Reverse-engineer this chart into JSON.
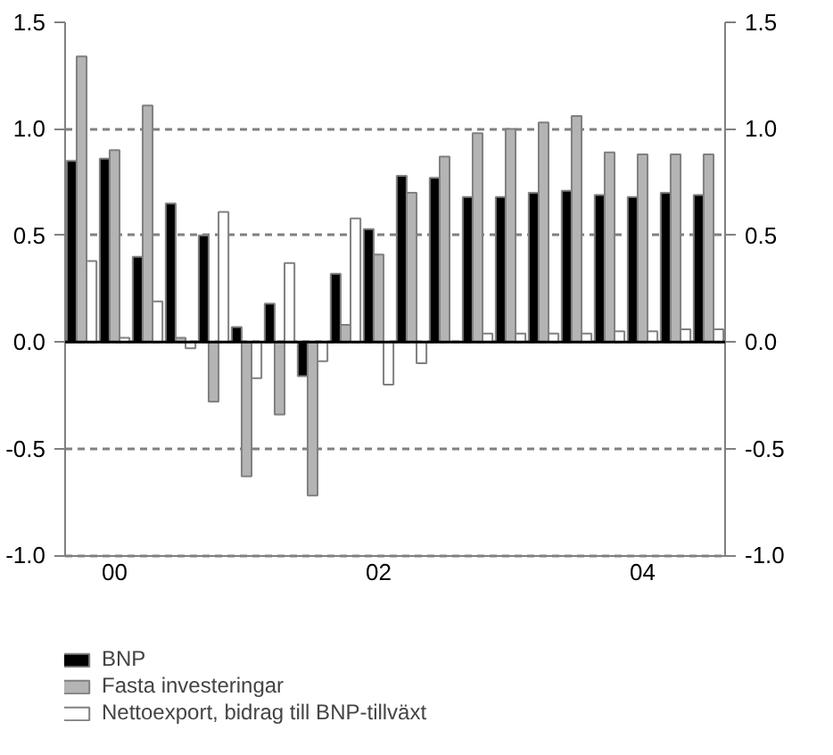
{
  "chart_data": {
    "type": "bar",
    "categories": [
      null,
      "00",
      null,
      null,
      null,
      null,
      null,
      null,
      null,
      "02",
      null,
      null,
      null,
      null,
      null,
      null,
      null,
      "04",
      null,
      null
    ],
    "ylim": [
      -1.0,
      1.5
    ],
    "yticks": [
      {
        "value": -1,
        "label": "-1.0"
      },
      -0.5,
      {
        "value": 0,
        "label": "0.0"
      },
      0.5,
      {
        "value": 1,
        "label": "1.0"
      },
      1.5
    ],
    "y2lim": [
      -1.0,
      1.5
    ],
    "y2ticks": [
      {
        "value": -1,
        "label": "-1.0"
      },
      -0.5,
      {
        "value": 0,
        "label": "0.0"
      },
      0.5,
      {
        "value": 1,
        "label": "1.0"
      },
      1.5
    ],
    "series": [
      {
        "name": "BNP",
        "color": "#000000",
        "values": [
          0.85,
          0.86,
          0.4,
          0.65,
          0.5,
          0.07,
          0.18,
          -0.16,
          0.32,
          0.53,
          0.78,
          0.77,
          0.68,
          0.68,
          0.7,
          0.71,
          0.69,
          0.68,
          0.7,
          0.69
        ]
      },
      {
        "name": "Fasta investeringar",
        "color": "#b4b4b4",
        "values": [
          1.34,
          0.9,
          1.11,
          0.02,
          -0.28,
          -0.63,
          -0.34,
          -0.72,
          0.08,
          0.41,
          0.7,
          0.87,
          0.98,
          1.0,
          1.03,
          1.06,
          0.89,
          0.88,
          0.88,
          0.88
        ]
      },
      {
        "name": "Nettoexport, bidrag till BNP-tillväxt",
        "color": "#ffffff",
        "values": [
          0.38,
          0.02,
          0.19,
          -0.03,
          0.61,
          -0.17,
          0.37,
          -0.09,
          0.58,
          -0.2,
          -0.1,
          null,
          0.04,
          0.04,
          0.04,
          0.04,
          0.05,
          0.05,
          0.06,
          0.06
        ]
      }
    ],
    "ref_lines": [
      {
        "axis": "y",
        "value": 0,
        "color": "#000000",
        "line_style": "solid"
      }
    ],
    "grid": "y",
    "legend": "bottom left"
  }
}
